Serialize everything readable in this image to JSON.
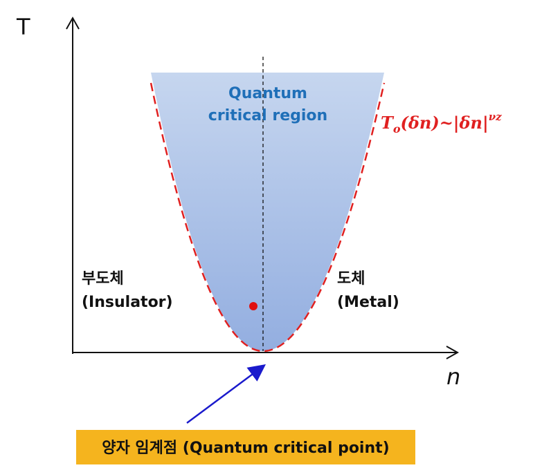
{
  "axes": {
    "y_label": "T",
    "x_label": "n"
  },
  "region": {
    "line1": "Quantum",
    "line2": "critical region"
  },
  "formula": {
    "base": "T",
    "subscript": "o",
    "body": "(δn)~|δn|",
    "superscript": "νz"
  },
  "insulator": {
    "korean": "부도체",
    "english": "(Insulator)"
  },
  "metal": {
    "korean": "도체",
    "english": "(Metal)"
  },
  "critical_point": {
    "label": "양자 임계점 (Quantum critical point)"
  }
}
